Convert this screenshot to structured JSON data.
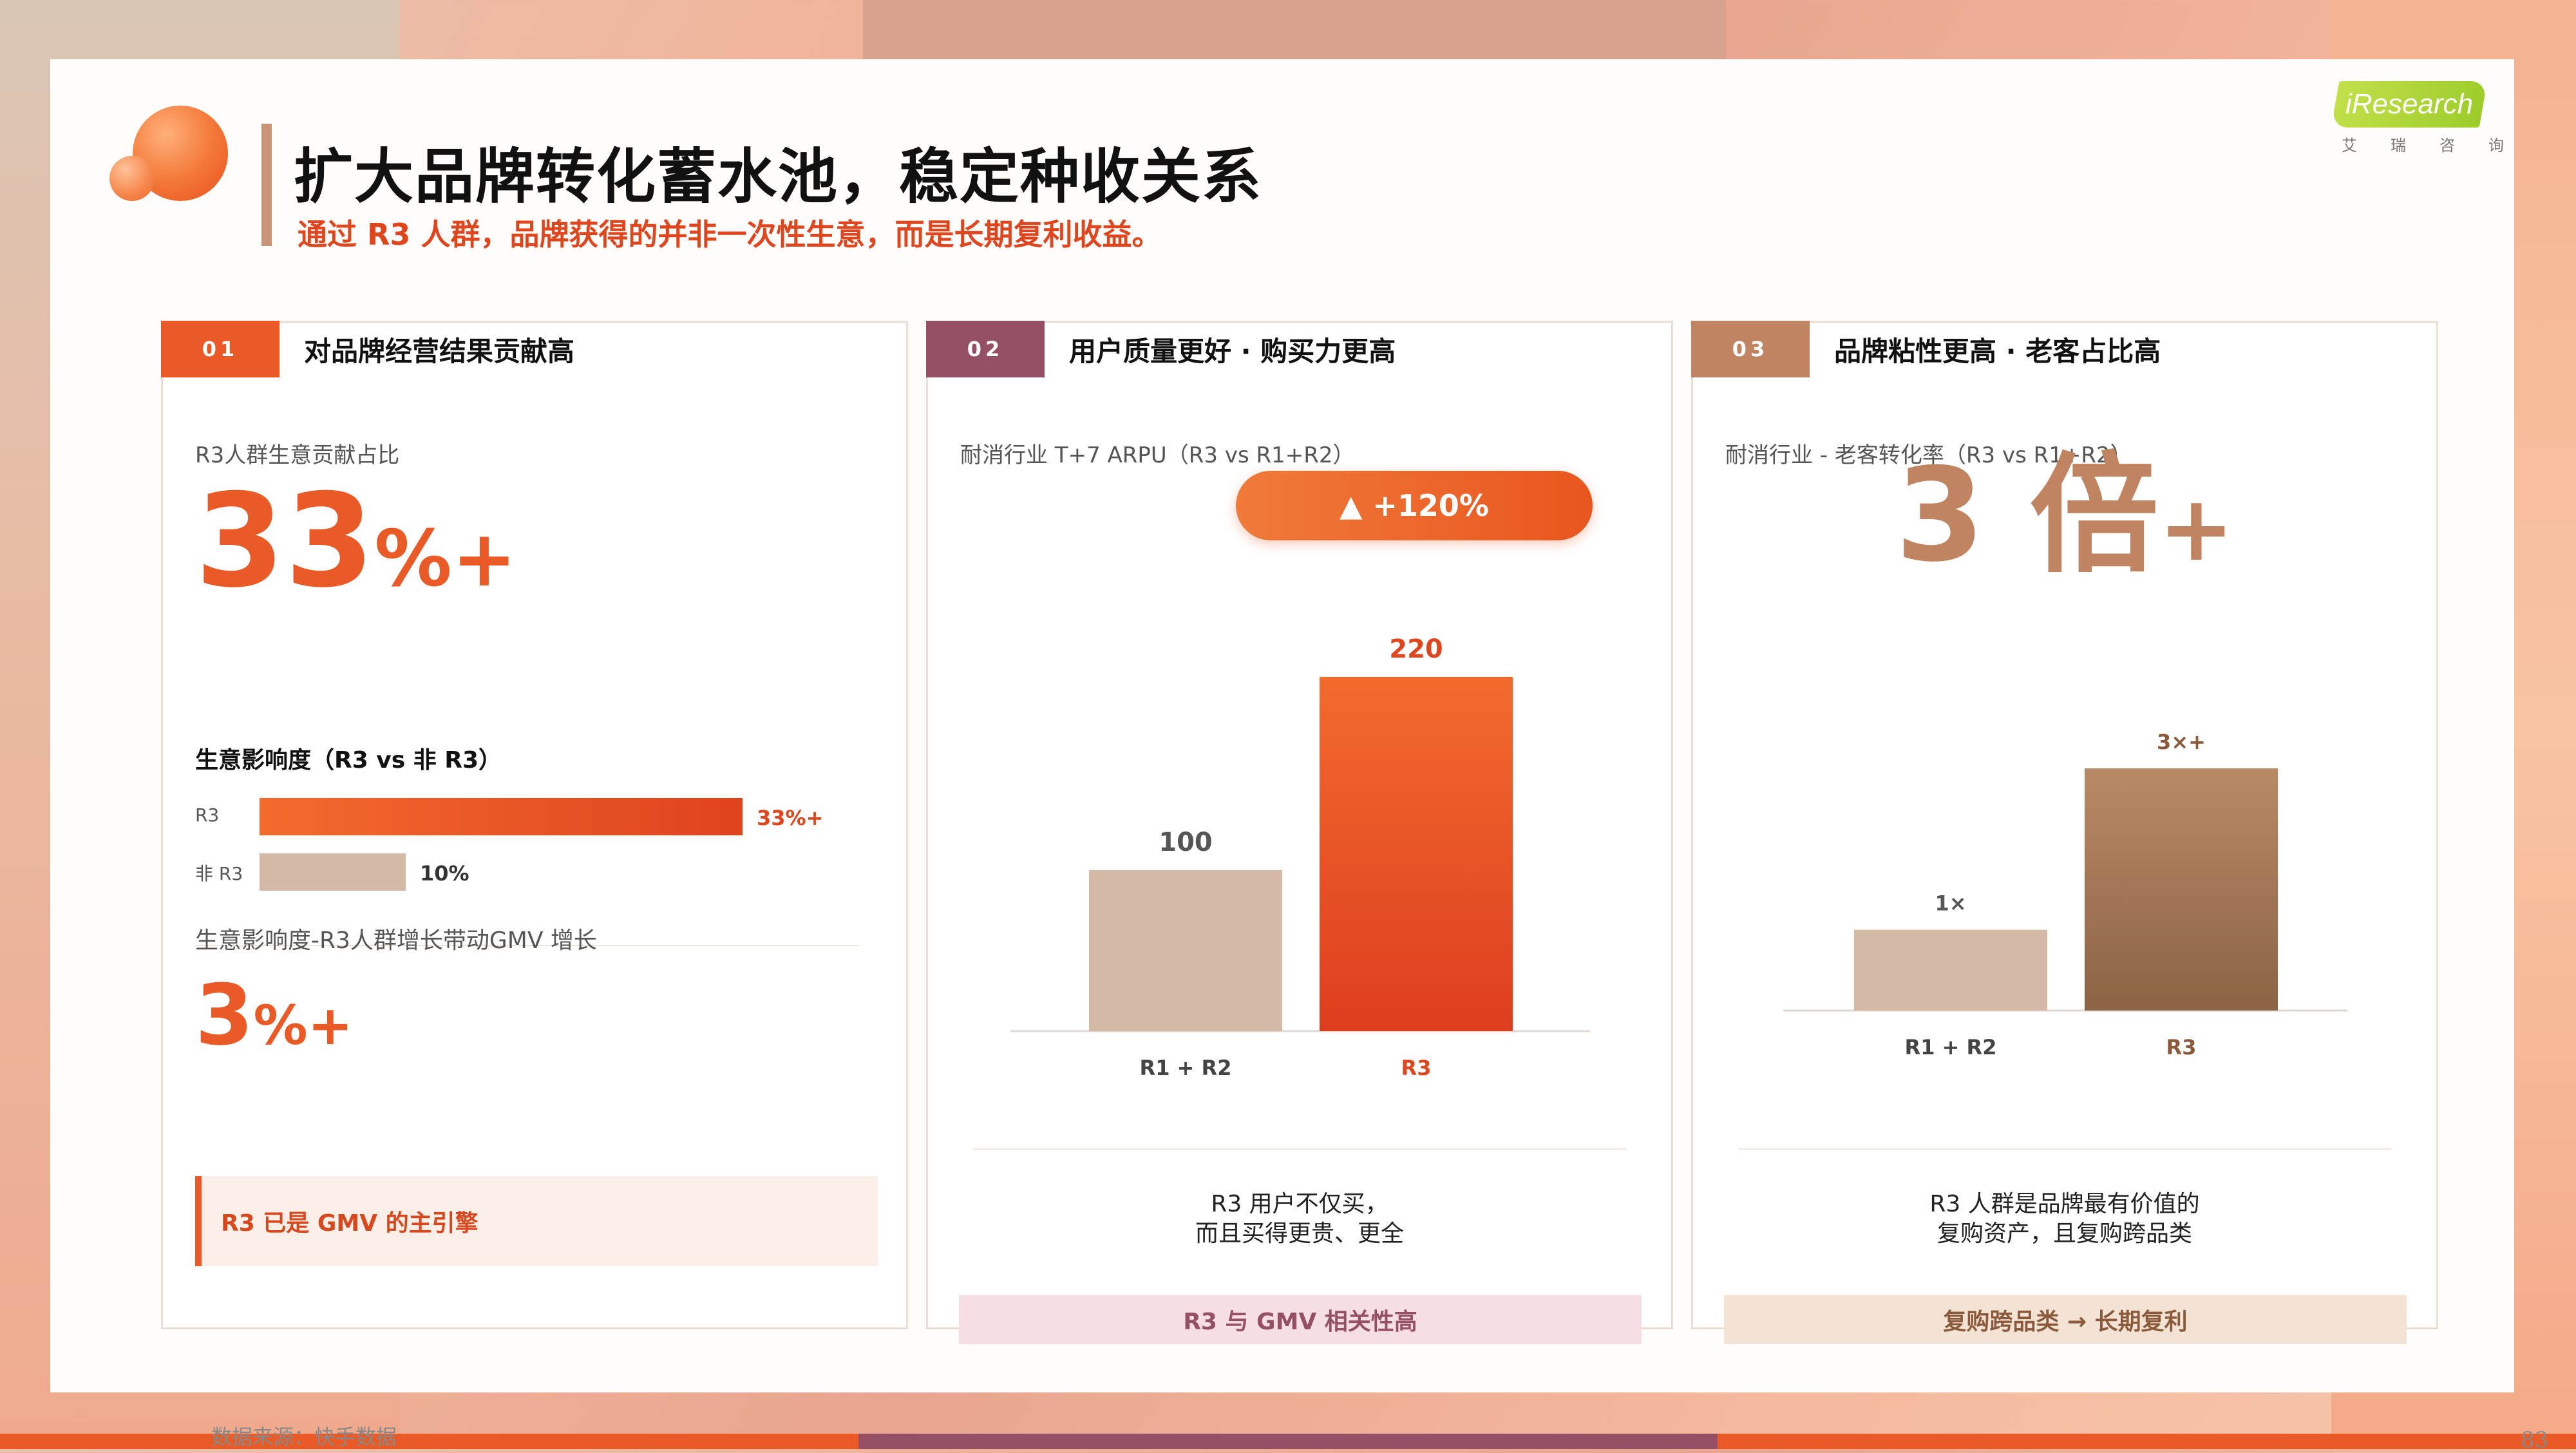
{
  "header": {
    "title": "扩大品牌转化蓄水池，稳定种收关系",
    "subtitle": "通过 R3 人群，品牌获得的并非一次性生意，而是长期复利收益。"
  },
  "brand": {
    "logo_text": "iResearch",
    "logo_sub": "艾瑞咨询"
  },
  "colors": {
    "orange": "#ea5a27",
    "plum": "#955063",
    "tan": "#c08560",
    "beige": "#d4b9a6"
  },
  "panel1": {
    "num": "01",
    "title": "对品牌经营结果贡献高",
    "label": "R3人群生意贡献占比",
    "big_number": "33",
    "big_suffix": "%+",
    "impact_title": "生意影响度（R3 vs 非 R3）",
    "bars": [
      {
        "label": "R3",
        "value": 33,
        "value_label": "33%+"
      },
      {
        "label": "非 R3",
        "value": 10,
        "value_label": "10%"
      }
    ],
    "gmv_label": "生意影响度-R3人群增长带动GMV 增长",
    "gmv_number": "3",
    "gmv_suffix": "%+",
    "callout": "R3 已是 GMV 的主引擎"
  },
  "panel2": {
    "num": "02",
    "title": "用户质量更好 · 购买力更高",
    "label": "耐消行业 T+7 ARPU（R3 vs R1+R2）",
    "pill": "▲ +120%",
    "note_lines": [
      "R3 用户不仅买，",
      "而且买得更贵、更全"
    ],
    "footer": "R3 与 GMV 相关性高"
  },
  "panel3": {
    "num": "03",
    "title": "品牌粘性更高 · 老客占比高",
    "label": "耐消行业 - 老客转化率（R3 vs R1+R2）",
    "big_number": "3 倍",
    "big_suffix": "+",
    "note_lines": [
      "R3 人群是品牌最有价值的",
      "复购资产，且复购跨品类"
    ],
    "footer": "复购跨品类 → 长期复利"
  },
  "chart_data": [
    {
      "type": "bar",
      "categories": [
        "R1 + R2",
        "R3"
      ],
      "values": [
        100,
        220
      ],
      "data_labels": [
        "100",
        "220"
      ]
    },
    {
      "type": "bar",
      "categories": [
        "R1 + R2",
        "R3"
      ],
      "values": [
        1,
        3
      ],
      "data_labels": [
        "1×",
        "3×+"
      ]
    }
  ],
  "footer": {
    "source": "数据来源：快手数据",
    "page": "83"
  }
}
